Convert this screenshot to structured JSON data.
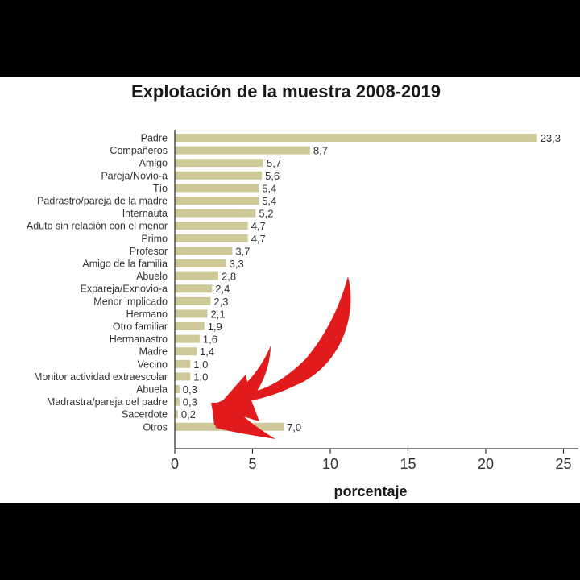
{
  "chart_data": {
    "type": "bar",
    "orientation": "horizontal",
    "title": "Explotación de la muestra 2008-2019",
    "xlabel": "porcentaje",
    "ylabel": "",
    "xlim": [
      0,
      26
    ],
    "x_ticks": [
      "0",
      "5",
      "10",
      "15",
      "20",
      "25"
    ],
    "bar_color": "#cfc99a",
    "annotation_arrow_color": "#e11b1b",
    "annotation_arrow_points_to": "Otros",
    "categories": [
      "Padre",
      "Compañeros",
      "Amigo",
      "Pareja/Novio-a",
      "Tío",
      "Padrastro/pareja de la madre",
      "Internauta",
      "Aduto sin relación con el menor",
      "Primo",
      "Profesor",
      "Amigo de la familia",
      "Abuelo",
      "Expareja/Exnovio-a",
      "Menor implicado",
      "Hermano",
      "Otro familiar",
      "Hermanastro",
      "Madre",
      "Vecino",
      "Monitor actividad extraescolar",
      "Abuela",
      "Madrastra/pareja del padre",
      "Sacerdote",
      "Otros"
    ],
    "values": [
      23.3,
      8.7,
      5.7,
      5.6,
      5.4,
      5.4,
      5.2,
      4.7,
      4.7,
      3.7,
      3.3,
      2.8,
      2.4,
      2.3,
      2.1,
      1.9,
      1.6,
      1.4,
      1.0,
      1.0,
      0.3,
      0.3,
      0.2,
      7.0
    ],
    "value_labels": [
      "23,3",
      "8,7",
      "5,7",
      "5,6",
      "5,4",
      "5,4",
      "5,2",
      "4,7",
      "4,7",
      "3,7",
      "3,3",
      "2,8",
      "2,4",
      "2,3",
      "2,1",
      "1,9",
      "1,6",
      "1,4",
      "1,0",
      "1,0",
      "0,3",
      "0,3",
      "0,2",
      "7,0"
    ]
  }
}
